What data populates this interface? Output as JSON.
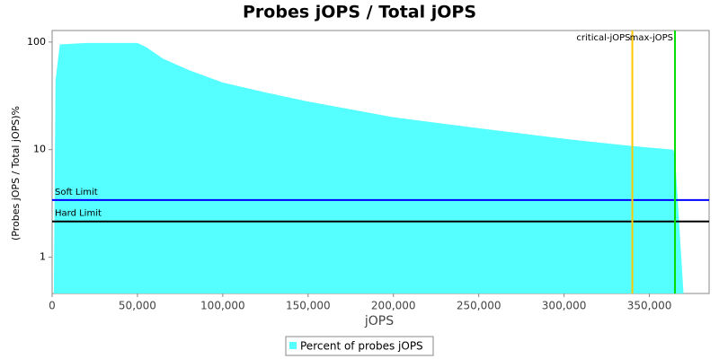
{
  "chart_data": {
    "type": "area",
    "title": "Probes jOPS / Total jOPS",
    "x_label": "jOPS",
    "y_label": "(Probes jOPS / Total jOPS)%",
    "log_y": true,
    "xlim": [
      0,
      385000
    ],
    "ylim": [
      0.46,
      128
    ],
    "xticks": [
      0,
      {
        "value": 50000,
        "label": "50,000"
      },
      {
        "value": 100000,
        "label": "100,000"
      },
      {
        "value": 150000,
        "label": "150,000"
      },
      {
        "value": 200000,
        "label": "200,000"
      },
      {
        "value": 250000,
        "label": "250,000"
      },
      {
        "value": 300000,
        "label": "300,000"
      },
      {
        "value": 350000,
        "label": "350,000"
      }
    ],
    "yticks": [
      1,
      10,
      100
    ],
    "series": [
      {
        "name": "Percent of probes jOPS",
        "color": "#55ffff",
        "x": [
          1000,
          2000,
          4500,
          20000,
          50000,
          55000,
          65000,
          80000,
          100000,
          125000,
          150000,
          200000,
          250000,
          300000,
          340000,
          364000,
          365000,
          370000
        ],
        "values": [
          0.46,
          44,
          95,
          98,
          98,
          90,
          70,
          55,
          42,
          34,
          28,
          20,
          15.8,
          12.6,
          10.8,
          10,
          8.6,
          0.46
        ]
      }
    ],
    "hlines": [
      {
        "label": "Soft Limit",
        "value": 3.4,
        "color": "#0000ff"
      },
      {
        "label": "Hard Limit",
        "value": 2.15,
        "color": "#000000"
      }
    ],
    "vlines": [
      {
        "label": "critical-jOPS",
        "value": 340000,
        "color": "#ffc800"
      },
      {
        "label": "max-jOPS",
        "value": 365000,
        "color": "#00dd00"
      }
    ]
  }
}
